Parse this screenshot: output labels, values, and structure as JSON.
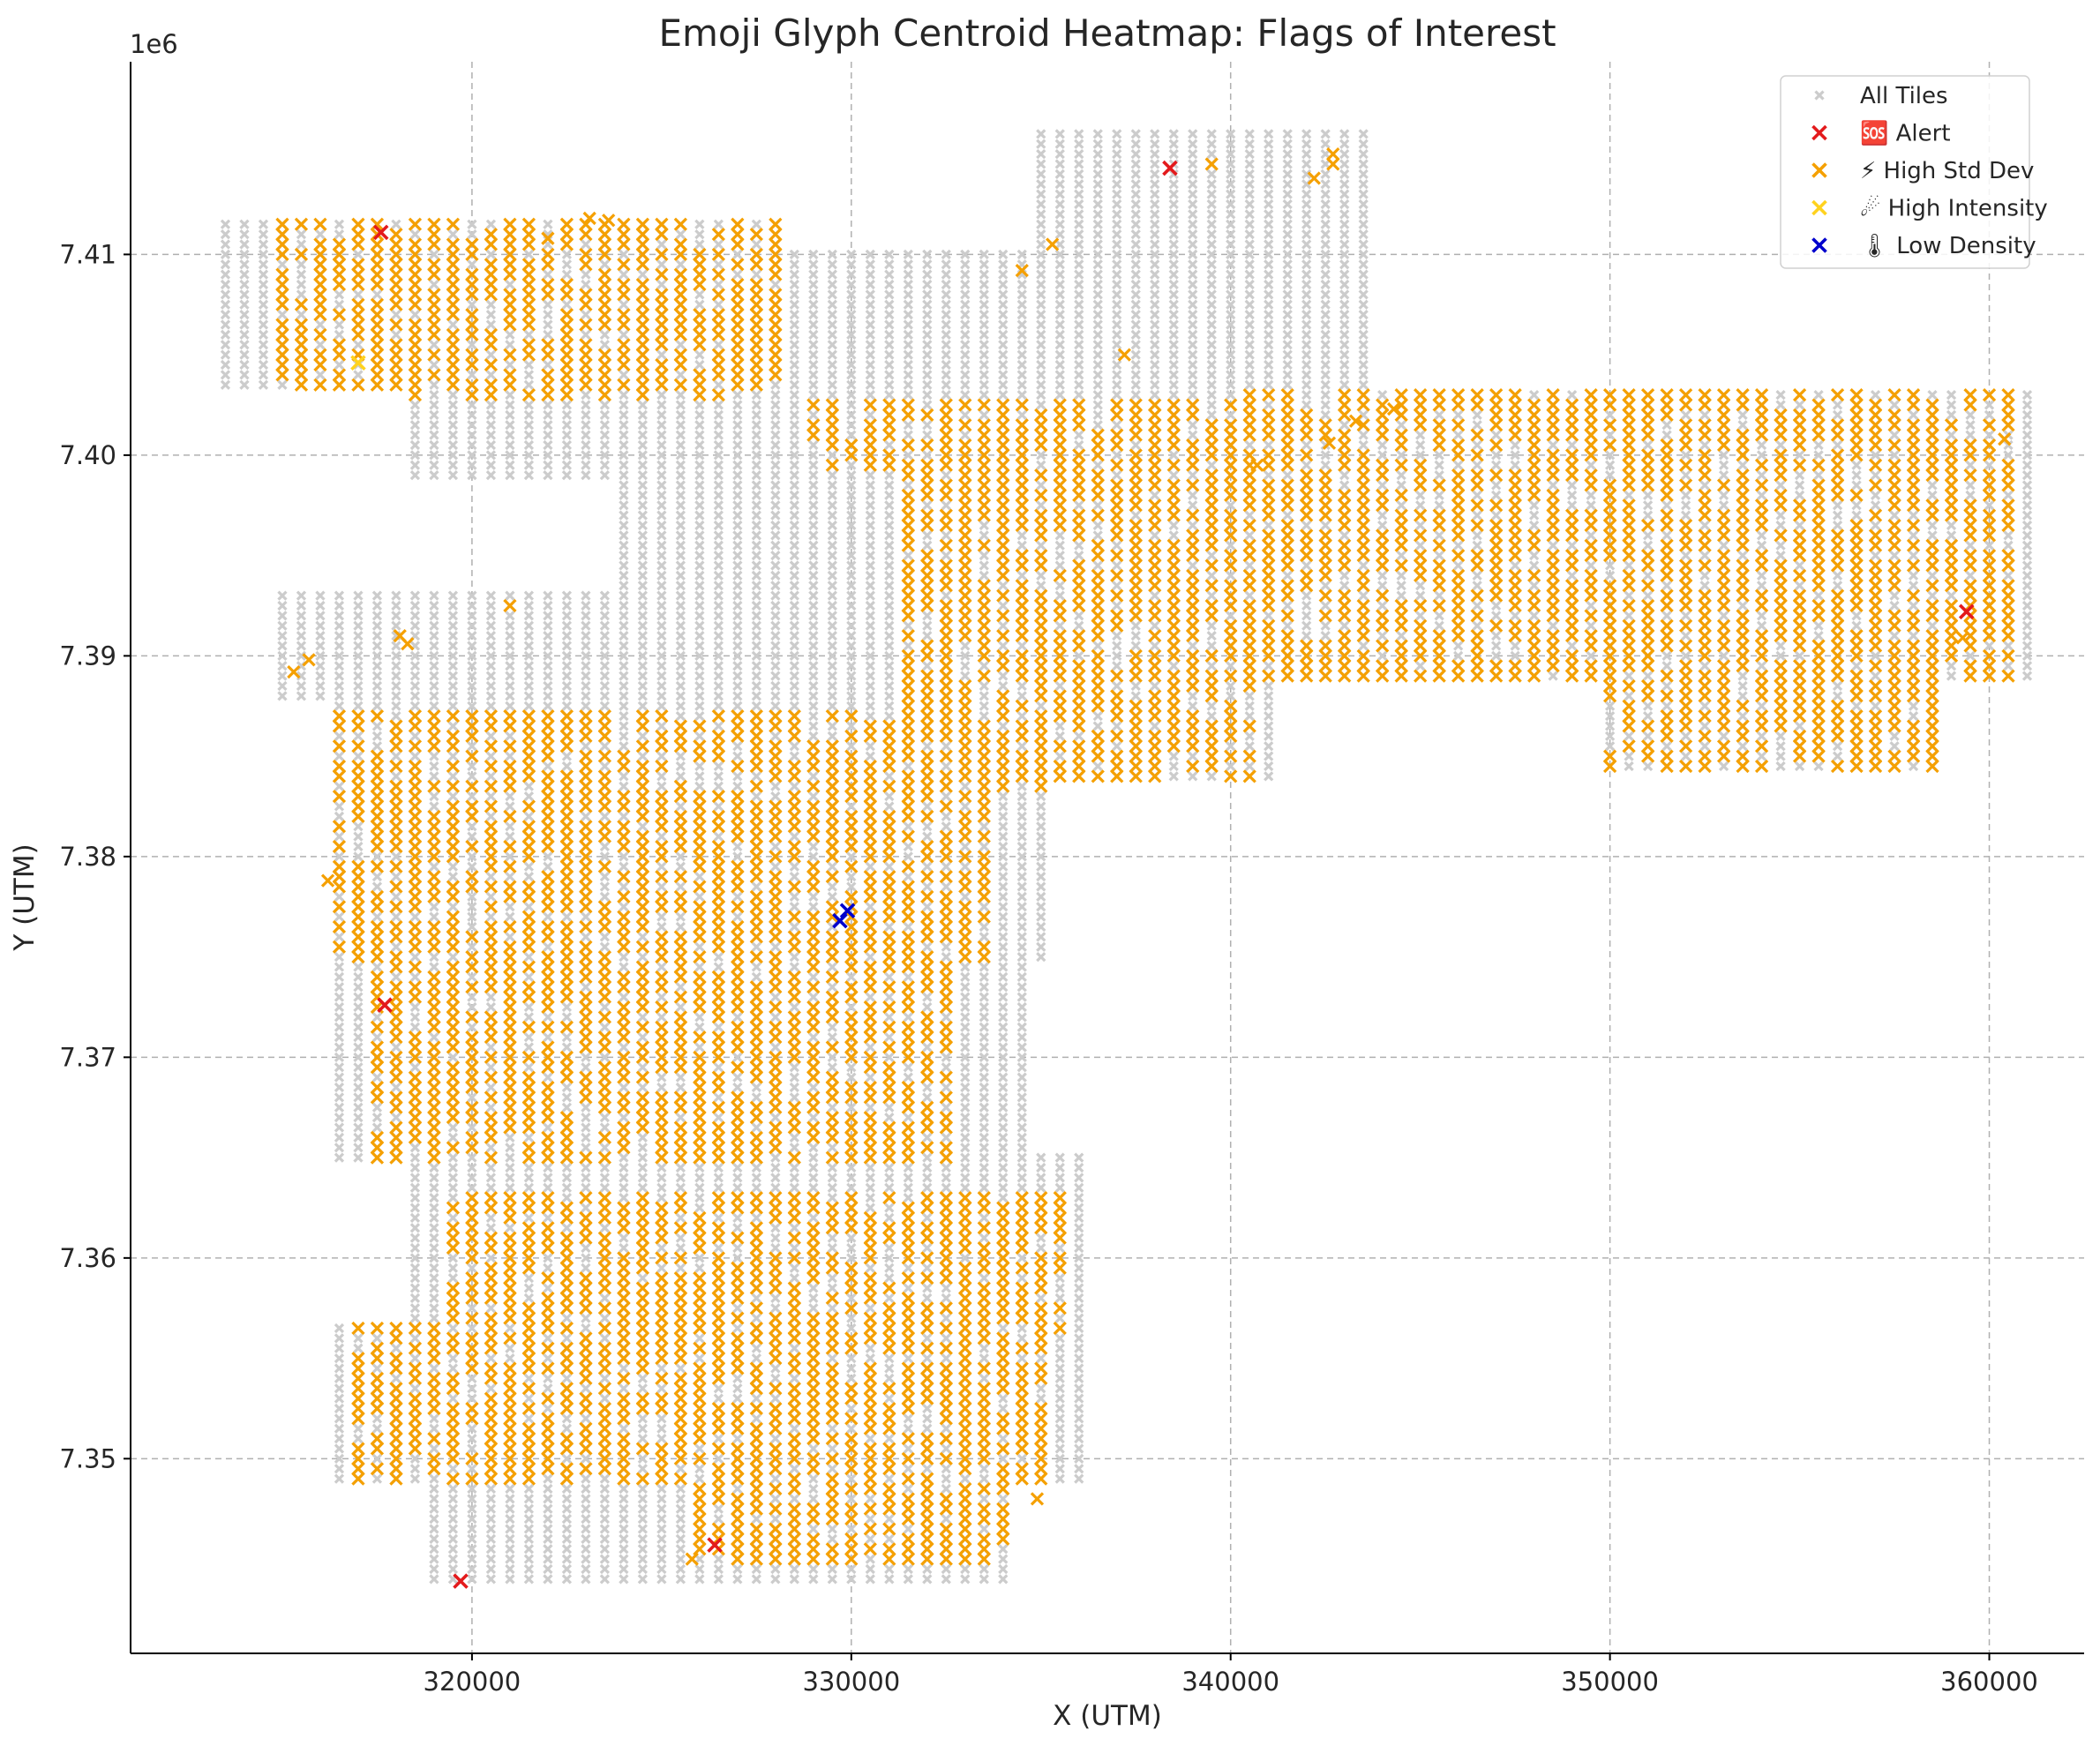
{
  "chart_data": {
    "type": "scatter",
    "title": "Emoji Glyph Centroid Heatmap: Flags of Interest",
    "xlabel": "X (UTM)",
    "ylabel": "Y (UTM)",
    "y_offset_label": "1e6",
    "xlim": [
      311000,
      362500
    ],
    "ylim": [
      7340300,
      7419600
    ],
    "xticks": [
      320000,
      330000,
      340000,
      350000,
      360000
    ],
    "xtick_labels": [
      "320000",
      "330000",
      "340000",
      "350000",
      "360000"
    ],
    "yticks": [
      7350000,
      7360000,
      7370000,
      7380000,
      7390000,
      7400000,
      7410000
    ],
    "ytick_labels": [
      "7.35",
      "7.36",
      "7.37",
      "7.38",
      "7.39",
      "7.40",
      "7.41"
    ],
    "grid": true,
    "legend_position": "top-right",
    "grid_spacing": 500,
    "series": [
      {
        "name": "All Tiles",
        "color": "#cccccc",
        "marker": "x-small",
        "regions": [
          {
            "x": [
              313500,
              328000
            ],
            "y": [
              7403500,
              7411500
            ]
          },
          {
            "x": [
              318500,
              342000
            ],
            "y": [
              7399000,
              7404500
            ]
          },
          {
            "x": [
              326000,
              336000
            ],
            "y": [
              7404000,
              7410000
            ]
          },
          {
            "x": [
              335000,
              343500
            ],
            "y": [
              7403000,
              7416000
            ]
          },
          {
            "x": [
              340500,
              361000
            ],
            "y": [
              7389000,
              7403000
            ]
          },
          {
            "x": [
              350000,
              358500
            ],
            "y": [
              7384500,
              7389000
            ]
          },
          {
            "x": [
              324000,
              341000
            ],
            "y": [
              7384000,
              7399500
            ]
          },
          {
            "x": [
              315000,
              325000
            ],
            "y": [
              7388000,
              7393000
            ]
          },
          {
            "x": [
              316500,
              335000
            ],
            "y": [
              7375000,
              7388000
            ]
          },
          {
            "x": [
              316500,
              334500
            ],
            "y": [
              7365000,
              7375000
            ]
          },
          {
            "x": [
              318500,
              336000
            ],
            "y": [
              7356500,
              7365000
            ]
          },
          {
            "x": [
              316500,
              336000
            ],
            "y": [
              7349000,
              7356500
            ]
          },
          {
            "x": [
              319000,
              334000
            ],
            "y": [
              7344000,
              7349000
            ]
          }
        ]
      },
      {
        "name": "⚡ High Std Dev",
        "color": "#f5a000",
        "marker": "x",
        "regions": [
          {
            "x": [
              315000,
              328000
            ],
            "y": [
              7403000,
              7411500
            ]
          },
          {
            "x": [
              329000,
              342000
            ],
            "y": [
              7399500,
              7402500
            ]
          },
          {
            "x": [
              331500,
              340500
            ],
            "y": [
              7383500,
              7399500
            ]
          },
          {
            "x": [
              340500,
              360500
            ],
            "y": [
              7389000,
              7403000
            ]
          },
          {
            "x": [
              350000,
              358500
            ],
            "y": [
              7384500,
              7389000
            ]
          },
          {
            "x": [
              316500,
              333500
            ],
            "y": [
              7375000,
              7387000
            ]
          },
          {
            "x": [
              317500,
              332500
            ],
            "y": [
              7365000,
              7375000
            ]
          },
          {
            "x": [
              319500,
              335500
            ],
            "y": [
              7356500,
              7363000
            ]
          },
          {
            "x": [
              317000,
              335000
            ],
            "y": [
              7349000,
              7356500
            ]
          },
          {
            "x": [
              326000,
              334000
            ],
            "y": [
              7345000,
              7349000
            ]
          }
        ],
        "density": 0.72,
        "x": [
          315300,
          315700,
          318300,
          322000,
          323100,
          323600,
          339500,
          342200,
          342700,
          342700,
          335300,
          334500,
          316200,
          318100,
          321000,
          325800,
          334900,
          337200,
          340700,
          342600,
          343300,
          344300,
          359300,
          360400
        ],
        "y": [
          7389200,
          7389800,
          7390600,
          7410800,
          7411800,
          7411700,
          7414500,
          7413800,
          7414500,
          7415000,
          7410500,
          7409200,
          7378800,
          7391000,
          7392500,
          7345000,
          7348000,
          7405000,
          7399500,
          7400600,
          7401700,
          7402300,
          7390900,
          7400800
        ]
      },
      {
        "name": "☄ High Intensity",
        "color": "#ffd21e",
        "marker": "x",
        "x": [
          317000
        ],
        "y": [
          7404600
        ]
      },
      {
        "name": "🆘 Alert",
        "color": "#e31a1c",
        "marker": "x",
        "x": [
          317600,
          338400,
          359400,
          317700,
          326400,
          319700
        ],
        "y": [
          7411100,
          7414300,
          7392200,
          7372600,
          7345700,
          7343900
        ]
      },
      {
        "name": "🌡 Low Density",
        "color": "#0000cc",
        "marker": "x",
        "x": [
          329700,
          329900
        ],
        "y": [
          7376800,
          7377300
        ]
      }
    ],
    "legend": [
      {
        "label": "All Tiles",
        "color": "#cccccc",
        "marker": "x-small"
      },
      {
        "label": "🆘 Alert",
        "color": "#e31a1c",
        "marker": "x"
      },
      {
        "label": "⚡ High Std Dev",
        "color": "#f5a000",
        "marker": "x"
      },
      {
        "label": "☄ High Intensity",
        "color": "#ffd21e",
        "marker": "x"
      },
      {
        "label": "🌡 Low Density",
        "color": "#0000cc",
        "marker": "x"
      }
    ]
  }
}
